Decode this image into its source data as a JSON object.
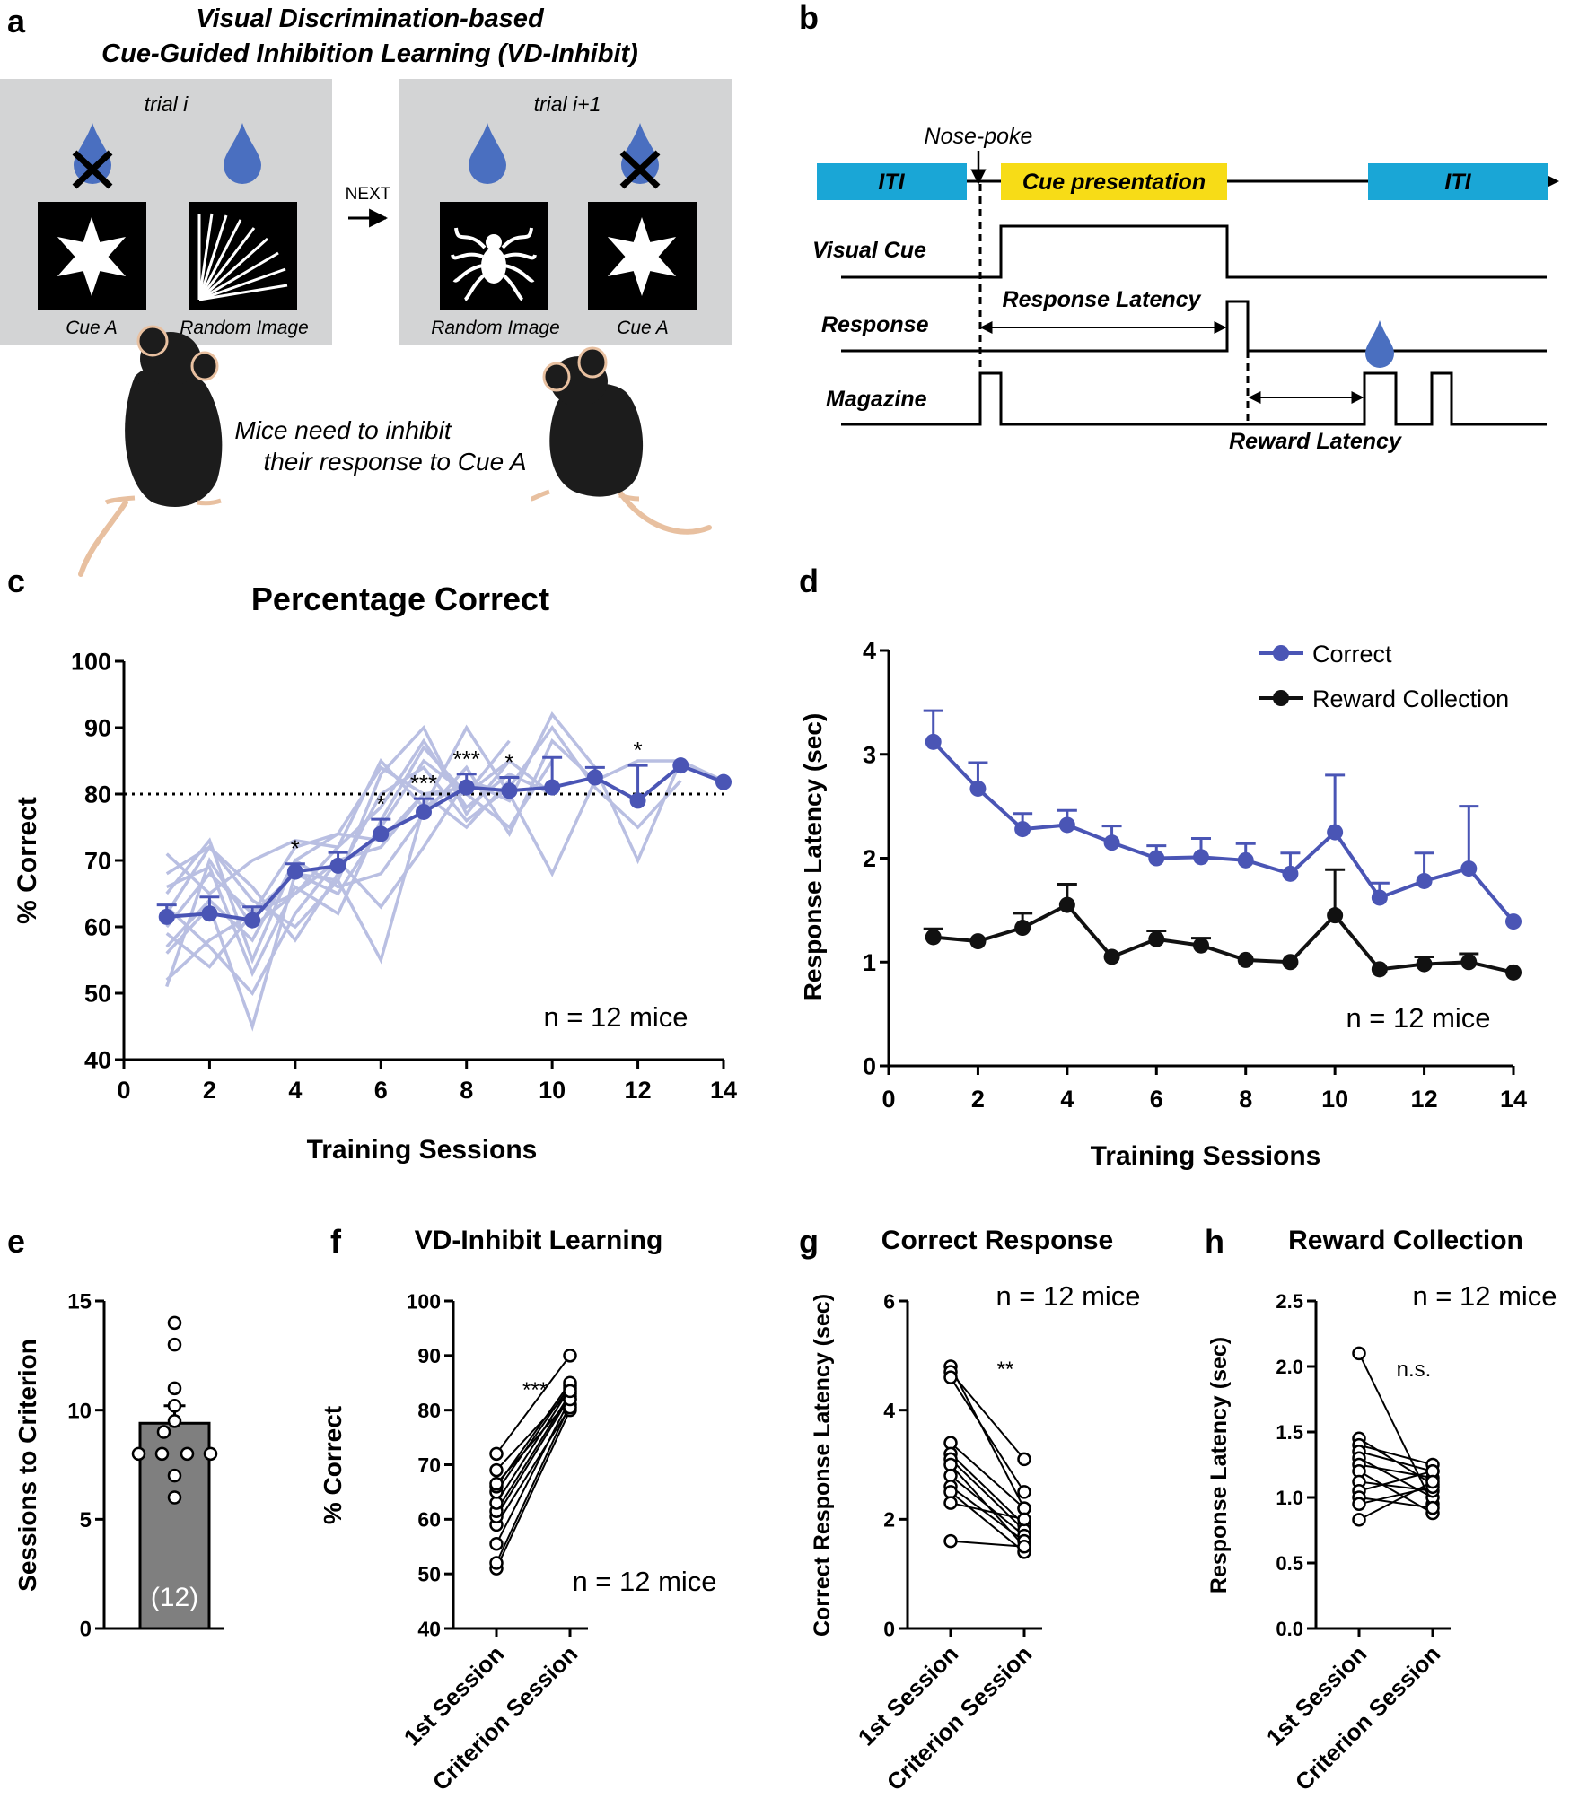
{
  "panels": {
    "a": {
      "label": "a",
      "title_line1": "Visual Discrimination-based",
      "title_line2": "Cue-Guided Inhibition Learning (VD-Inhibit)",
      "trial_left": "trial i",
      "trial_right": "trial i+1",
      "next": "NEXT",
      "cue_a": "Cue A",
      "random_image": "Random Image",
      "caption_line1": "Mice need to inhibit",
      "caption_line2": "their response to Cue A",
      "colors": {
        "panel_bg": "#d3d4d5",
        "drop": "#4a6fc0"
      }
    },
    "b": {
      "label": "b",
      "nose_poke": "Nose-poke",
      "iti": "ITI",
      "cue_presentation": "Cue presentation",
      "visual_cue": "Visual Cue",
      "response": "Response",
      "magazine": "Magazine",
      "response_latency": "Response Latency",
      "reward_latency": "Reward Latency",
      "colors": {
        "iti": "#1aa6d6",
        "cue": "#f7dc17"
      }
    }
  },
  "chart_data": [
    {
      "id": "c",
      "panel_label": "c",
      "type": "line",
      "title": "Percentage Correct",
      "xlabel": "Training Sessions",
      "ylabel": "% Correct",
      "xlim": [
        0,
        14
      ],
      "ylim": [
        40,
        100
      ],
      "xticks": [
        0,
        2,
        4,
        6,
        8,
        10,
        12,
        14
      ],
      "yticks": [
        40,
        50,
        60,
        70,
        80,
        90,
        100
      ],
      "criterion_line": 80,
      "annotation": "n = 12 mice",
      "mean_color": "#4a55b5",
      "individual_color": "#b9bfe2",
      "mean": {
        "x": [
          1,
          2,
          3,
          4,
          5,
          6,
          7,
          8,
          9,
          10,
          11,
          12,
          13,
          14
        ],
        "y": [
          61.5,
          62,
          61,
          68.3,
          69.2,
          74,
          77.3,
          81,
          80.5,
          81,
          82.5,
          79,
          84.3,
          81.8
        ],
        "err": [
          1.8,
          2.5,
          2,
          1.2,
          2,
          2.2,
          2,
          2,
          2,
          4.5,
          1.5,
          5.3,
          0,
          0
        ],
        "sig": [
          "",
          "",
          "",
          "*",
          "",
          "*",
          "***",
          "***",
          "*",
          "",
          "",
          "*",
          "",
          ""
        ]
      },
      "individuals": [
        [
          52,
          58,
          62,
          65,
          70,
          72,
          80,
          81
        ],
        [
          56,
          63,
          45,
          68,
          67,
          55,
          78,
          90,
          80
        ],
        [
          60,
          68,
          62,
          72,
          74,
          84,
          80,
          75,
          82
        ],
        [
          65,
          73,
          55,
          70,
          66,
          68,
          77,
          84,
          74,
          88,
          82,
          85,
          85,
          82
        ],
        [
          63,
          57,
          50,
          62,
          70,
          63,
          72,
          82,
          79,
          92,
          84,
          70,
          85
        ],
        [
          59,
          54,
          62,
          68,
          65,
          75,
          85,
          80,
          88
        ],
        [
          68,
          72,
          64,
          60,
          67,
          83,
          90,
          77,
          85
        ],
        [
          71,
          65,
          70,
          73,
          72,
          85,
          78,
          82,
          80,
          68,
          82
        ],
        [
          51,
          70,
          60,
          65,
          72,
          78,
          88,
          78,
          83,
          80
        ],
        [
          62,
          72,
          66,
          58,
          68,
          80,
          84,
          76,
          81,
          90,
          81,
          75,
          82
        ],
        [
          66,
          69,
          53,
          66,
          62,
          76,
          87,
          80,
          75,
          85
        ],
        [
          57,
          64,
          58,
          70,
          74,
          73,
          80,
          80,
          85,
          80
        ]
      ]
    },
    {
      "id": "d",
      "panel_label": "d",
      "type": "line",
      "xlabel": "Training Sessions",
      "ylabel": "Response Latency (sec)",
      "xlim": [
        0,
        14
      ],
      "ylim": [
        0,
        4
      ],
      "xticks": [
        0,
        2,
        4,
        6,
        8,
        10,
        12,
        14
      ],
      "yticks": [
        0,
        1,
        2,
        3,
        4
      ],
      "annotation": "n = 12 mice",
      "legend_position": "top-right",
      "series": [
        {
          "name": "Correct",
          "color": "#4a55b5",
          "x": [
            1,
            2,
            3,
            4,
            5,
            6,
            7,
            8,
            9,
            10,
            11,
            12,
            13,
            14
          ],
          "y": [
            3.12,
            2.67,
            2.28,
            2.32,
            2.15,
            2.0,
            2.01,
            1.98,
            1.85,
            2.25,
            1.62,
            1.78,
            1.9,
            1.39
          ],
          "err": [
            0.3,
            0.25,
            0.15,
            0.14,
            0.16,
            0.12,
            0.18,
            0.16,
            0.2,
            0.55,
            0.14,
            0.27,
            0.6,
            0
          ]
        },
        {
          "name": "Reward Collection",
          "color": "#111111",
          "x": [
            1,
            2,
            3,
            4,
            5,
            6,
            7,
            8,
            9,
            10,
            11,
            12,
            13,
            14
          ],
          "y": [
            1.24,
            1.2,
            1.33,
            1.55,
            1.05,
            1.22,
            1.16,
            1.02,
            1.0,
            1.45,
            0.93,
            0.98,
            1.0,
            0.9
          ],
          "err": [
            0.08,
            0,
            0.14,
            0.2,
            0,
            0.08,
            0.07,
            0,
            0,
            0.44,
            0,
            0.07,
            0.08,
            0
          ]
        }
      ]
    },
    {
      "id": "e",
      "panel_label": "e",
      "type": "bar",
      "ylabel": "Sessions to Criterion",
      "ylim": [
        0,
        15
      ],
      "yticks": [
        0,
        5,
        10,
        15
      ],
      "mean": 9.4,
      "sem": 0.8,
      "n_label": "(12)",
      "bar_color": "#7f7f7f",
      "points": [
        6,
        7,
        8,
        8,
        8,
        8,
        9,
        9.5,
        10.2,
        11,
        13,
        14
      ]
    },
    {
      "id": "f",
      "panel_label": "f",
      "type": "scatter",
      "title": "VD-Inhibit Learning",
      "ylabel": "% Correct",
      "ylim": [
        40,
        100
      ],
      "yticks": [
        40,
        50,
        60,
        70,
        80,
        90,
        100
      ],
      "categories": [
        "1st Session",
        "Criterion Session"
      ],
      "significance": "***",
      "annotation": "n = 12 mice",
      "pairs": [
        [
          51,
          80
        ],
        [
          52,
          81
        ],
        [
          55.5,
          82
        ],
        [
          59,
          80.5
        ],
        [
          60.5,
          82.5
        ],
        [
          61.5,
          83
        ],
        [
          63,
          84
        ],
        [
          65,
          84.5
        ],
        [
          66,
          85
        ],
        [
          66.5,
          82
        ],
        [
          69,
          83.5
        ],
        [
          72,
          90
        ]
      ]
    },
    {
      "id": "g",
      "panel_label": "g",
      "type": "scatter",
      "title": "Correct Response",
      "ylabel": "Correct Response Latency (sec)",
      "ylim": [
        0,
        6
      ],
      "yticks": [
        0,
        2,
        4,
        6
      ],
      "categories": [
        "1st Session",
        "Criterion Session"
      ],
      "significance": "**",
      "annotation": "n = 12 mice",
      "pairs": [
        [
          4.8,
          2.2
        ],
        [
          4.7,
          3.1
        ],
        [
          4.6,
          2.5
        ],
        [
          3.4,
          2.2
        ],
        [
          3.2,
          1.9
        ],
        [
          3.1,
          1.8
        ],
        [
          3.0,
          1.5
        ],
        [
          2.8,
          1.7
        ],
        [
          2.6,
          1.6
        ],
        [
          2.5,
          1.4
        ],
        [
          2.3,
          2.0
        ],
        [
          1.6,
          1.5
        ]
      ]
    },
    {
      "id": "h",
      "panel_label": "h",
      "type": "scatter",
      "title": "Reward Collection",
      "ylabel": "Response Latency (sec)",
      "ylim": [
        0,
        2.5
      ],
      "yticks": [
        0.0,
        0.5,
        1.0,
        1.5,
        2.0,
        2.5
      ],
      "ytick_labels": [
        "0.0",
        "0.5",
        "1.0",
        "1.5",
        "2.0",
        "2.5"
      ],
      "categories": [
        "1st Session",
        "Criterion Session"
      ],
      "significance": "n.s.",
      "annotation": "n = 12 mice",
      "pairs": [
        [
          2.1,
          0.95
        ],
        [
          1.45,
          1.1
        ],
        [
          1.4,
          1.25
        ],
        [
          1.35,
          1.2
        ],
        [
          1.3,
          1.0
        ],
        [
          1.25,
          1.15
        ],
        [
          1.2,
          0.88
        ],
        [
          1.12,
          1.05
        ],
        [
          1.05,
          1.2
        ],
        [
          1.0,
          0.92
        ],
        [
          0.95,
          1.08
        ],
        [
          0.83,
          1.12
        ]
      ]
    }
  ]
}
